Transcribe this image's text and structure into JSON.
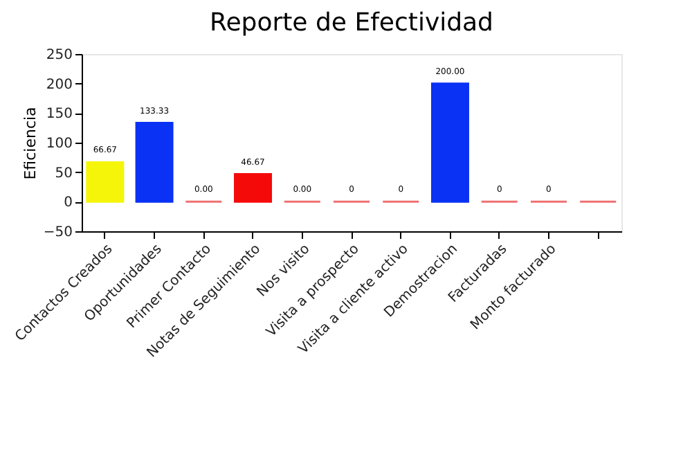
{
  "chart_data": {
    "type": "bar",
    "title": "Reporte de Efectividad",
    "ylabel": "Eficiencia",
    "categories": [
      "Contactos Creados",
      "Oportunidades",
      "Primer Contacto",
      "Notas de Seguimiento",
      "Nos visito",
      "Visita a prospecto",
      "Visita a cliente activo",
      "Demostracion",
      "Facturadas",
      "Monto facturado",
      null
    ],
    "values": [
      66.67,
      133.33,
      0,
      46.67,
      0,
      0,
      0,
      200,
      0,
      0,
      0
    ],
    "colors": [
      "#f5f50a",
      "#0a32f5",
      "#f07070",
      "#f50a0a",
      "#f07070",
      "#f07070",
      "#f07070",
      "#0a32f5",
      "#f07070",
      "#f07070",
      "#f07070"
    ],
    "value_labels": [
      "66.67",
      "133.33",
      "0.00",
      "46.67",
      "0.00",
      "0",
      "0",
      "200.00",
      "0",
      "0",
      null
    ],
    "ylim": [
      -50,
      250
    ],
    "yticks": [
      -50,
      0,
      50,
      100,
      150,
      200,
      250
    ]
  }
}
